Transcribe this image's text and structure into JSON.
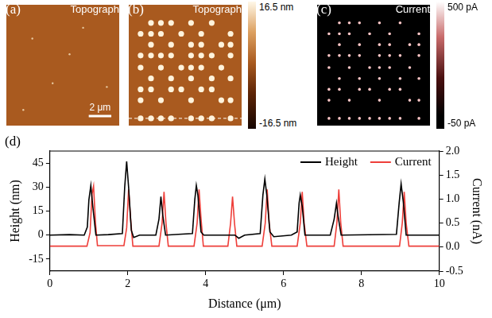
{
  "chart_data": [
    {
      "panel": "(a)",
      "type": "scatter",
      "title": "Topograph",
      "xlim": [
        0,
        10
      ],
      "ylim": [
        0,
        10
      ],
      "tick_labels": false,
      "series": [
        {
          "color": "#e8c9a0",
          "x": [
            2.3,
            4.1,
            6.8,
            8.9,
            1.5,
            5.6
          ],
          "y": [
            7.2,
            3.5,
            8.1,
            3.2,
            1.3,
            5.9
          ]
        }
      ],
      "scale_bar": {
        "length": 2,
        "label": "2 μm"
      }
    },
    {
      "panel": "(b)",
      "type": "scatter",
      "title": "Topograph",
      "xlim": [
        0,
        10
      ],
      "ylim": [
        0,
        10
      ],
      "tick_labels": false,
      "series": [
        {
          "color": "#fff3dc",
          "x": [
            1.97,
            2.85,
            3.75,
            5.52,
            7.35,
            1.05,
            1.97,
            2.85,
            4.65,
            6.42,
            9.02,
            1.97,
            3.75,
            5.52,
            6.42,
            8.2,
            9.02,
            1.05,
            1.97,
            2.85,
            3.75,
            5.52,
            6.42,
            7.35,
            9.02,
            1.05,
            2.85,
            4.65,
            5.52,
            6.42,
            8.2,
            1.97,
            3.75,
            5.52,
            7.35,
            9.02,
            1.05,
            1.97,
            3.75,
            4.65,
            6.42,
            7.35,
            1.05,
            2.85,
            5.52,
            8.2,
            9.02,
            1.05,
            1.97,
            2.85,
            3.75,
            5.52,
            6.42,
            7.35,
            9.02
          ],
          "y": [
            8.5,
            8.5,
            8.5,
            8.5,
            8.5,
            7.6,
            7.6,
            7.6,
            7.6,
            7.6,
            7.6,
            6.7,
            6.7,
            6.7,
            6.7,
            6.7,
            6.7,
            5.8,
            5.8,
            5.8,
            5.8,
            5.8,
            5.8,
            5.8,
            5.8,
            4.8,
            4.8,
            4.8,
            4.8,
            4.8,
            4.8,
            3.9,
            3.9,
            3.9,
            3.9,
            3.9,
            3.0,
            3.0,
            3.0,
            3.0,
            3.0,
            3.0,
            2.1,
            2.1,
            2.1,
            2.1,
            2.1,
            0.6,
            0.6,
            0.6,
            0.6,
            0.6,
            0.6,
            0.6,
            0.6
          ]
        }
      ],
      "profile": {
        "y": 0.6,
        "line_style": "dashed"
      },
      "colorbar": {
        "range": [
          -16.5,
          16.5
        ],
        "ticks": [
          {
            "value": 16.5,
            "label": "16.5 nm"
          },
          {
            "value": -16.5,
            "label": "-16.5 nm"
          }
        ]
      }
    },
    {
      "panel": "(c)",
      "type": "scatter",
      "title": "Current",
      "xlim": [
        0,
        10
      ],
      "ylim": [
        0,
        10
      ],
      "tick_labels": false,
      "series": [
        {
          "color": "#ffc8c8",
          "x": [
            1.97,
            2.85,
            3.75,
            5.52,
            7.35,
            1.05,
            1.97,
            2.85,
            4.65,
            6.42,
            9.02,
            1.97,
            3.75,
            5.52,
            6.42,
            8.2,
            9.02,
            1.05,
            1.97,
            2.85,
            3.75,
            5.52,
            6.42,
            7.35,
            9.02,
            1.05,
            2.85,
            4.65,
            5.52,
            6.42,
            8.2,
            1.97,
            3.75,
            5.52,
            7.35,
            9.02,
            1.05,
            1.97,
            3.75,
            4.65,
            6.42,
            7.35,
            1.05,
            2.85,
            5.52,
            8.2,
            9.02,
            1.05,
            1.97,
            2.85,
            3.75,
            5.52,
            6.42,
            7.35,
            9.02,
            4.65
          ],
          "y": [
            8.5,
            8.5,
            8.5,
            8.5,
            8.5,
            7.6,
            7.6,
            7.6,
            7.6,
            7.6,
            7.6,
            6.7,
            6.7,
            6.7,
            6.7,
            6.7,
            6.7,
            5.8,
            5.8,
            5.8,
            5.8,
            5.8,
            5.8,
            5.8,
            5.8,
            4.8,
            4.8,
            4.8,
            4.8,
            4.8,
            4.8,
            3.9,
            3.9,
            3.9,
            3.9,
            3.9,
            3.0,
            3.0,
            3.0,
            3.0,
            3.0,
            3.0,
            2.1,
            2.1,
            2.1,
            2.1,
            2.1,
            0.6,
            0.6,
            0.6,
            0.6,
            0.6,
            0.6,
            0.6,
            0.6,
            0.6
          ]
        }
      ],
      "colorbar": {
        "range": [
          -50,
          500
        ],
        "ticks": [
          {
            "value": 500,
            "label": "500 pA"
          },
          {
            "value": -50,
            "label": "-50 pA"
          }
        ]
      }
    },
    {
      "panel": "(d)",
      "type": "line",
      "xlabel": "Distance (μm)",
      "ylabel": "Height (nm)",
      "y2label": "Current (nA)",
      "xlim": [
        0,
        10
      ],
      "xticks": [
        0,
        2,
        4,
        6,
        8,
        10
      ],
      "ylim": [
        -22.5,
        52.5
      ],
      "yticks": [
        -15,
        0,
        15,
        30,
        45
      ],
      "y2lim": [
        -0.5,
        2.0
      ],
      "y2ticks": [
        -0.5,
        {
          "value": 0,
          "label": "0.0"
        },
        0.5,
        {
          "value": 1,
          "label": "1.0"
        },
        1.5,
        {
          "value": 2,
          "label": "2.0"
        }
      ],
      "grid": false,
      "legend": "upper right",
      "series": [
        {
          "name": "Height",
          "color": "#000000",
          "x": [
            0,
            0.5,
            0.88,
            0.96,
            1.0,
            1.05,
            1.1,
            1.18,
            1.5,
            1.86,
            1.92,
            1.97,
            2.02,
            2.09,
            2.15,
            2.3,
            2.72,
            2.8,
            2.85,
            2.9,
            2.97,
            3.3,
            3.66,
            3.72,
            3.76,
            3.8,
            3.88,
            3.95,
            4.6,
            4.75,
            4.85,
            5.0,
            5.4,
            5.47,
            5.52,
            5.57,
            5.65,
            5.75,
            6.2,
            6.35,
            6.4,
            6.43,
            6.48,
            6.55,
            7.2,
            7.3,
            7.36,
            7.4,
            7.48,
            8.9,
            8.97,
            9.02,
            9.08,
            9.15,
            10
          ],
          "values": [
            0,
            0.3,
            0,
            5,
            22,
            31,
            18,
            0,
            0.3,
            1,
            30,
            46,
            30,
            3,
            -1.5,
            0,
            0,
            10,
            24,
            12,
            0,
            0.5,
            1,
            22,
            31,
            25,
            2,
            0,
            0,
            0,
            -2,
            0,
            1,
            25,
            35,
            25,
            2,
            -1,
            0,
            2,
            20,
            25,
            18,
            0,
            0,
            10,
            20,
            12,
            0,
            0.5,
            20,
            32,
            20,
            0,
            0
          ]
        },
        {
          "name": "Current",
          "color": "#ee3f3a",
          "axis": "y2",
          "x": [
            0,
            0.95,
            1.03,
            1.08,
            1.12,
            1.17,
            1.22,
            1.9,
            1.97,
            2.02,
            2.07,
            2.13,
            2.8,
            2.88,
            2.93,
            2.98,
            3.04,
            3.7,
            3.78,
            3.83,
            3.88,
            3.94,
            4.57,
            4.64,
            4.69,
            4.74,
            4.8,
            5.45,
            5.53,
            5.58,
            5.63,
            5.7,
            6.35,
            6.43,
            6.48,
            6.53,
            6.6,
            7.3,
            7.37,
            7.42,
            7.47,
            7.53,
            8.98,
            9.05,
            9.1,
            9.15,
            9.22,
            10
          ],
          "values": [
            0.02,
            0.02,
            0.3,
            1.1,
            1.27,
            0.5,
            0.03,
            0.03,
            0.4,
            1.2,
            0.6,
            0.02,
            0.02,
            0.5,
            1.15,
            0.5,
            0.02,
            0.02,
            0.5,
            1.2,
            0.6,
            0.02,
            0.02,
            0.5,
            1.05,
            0.5,
            0.02,
            0.02,
            0.5,
            1.2,
            0.5,
            0.02,
            0.02,
            0.5,
            1.15,
            0.5,
            0.02,
            0.02,
            0.5,
            1.2,
            0.5,
            0.02,
            0.02,
            0.5,
            1.15,
            0.5,
            0.02,
            0.02
          ]
        }
      ]
    }
  ]
}
